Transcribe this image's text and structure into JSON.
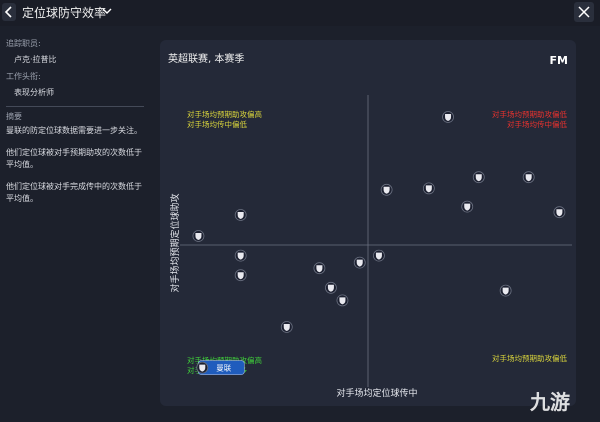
{
  "header": {
    "title": "定位球防守效率"
  },
  "sidebar": {
    "tracked_staff_label": "追踪职员:",
    "tracked_staff": "卢克·拉普比",
    "job_title_label": "工作头衔:",
    "job_title": "表现分析师",
    "summary_label": "摘要",
    "summary": [
      "曼联的防定位球数据需要进一步关注。",
      "他们定位球被对手预期助攻的次数低于平均值。",
      "他们定位球被对手完成传中的次数低于平均值。"
    ]
  },
  "chart_data": {
    "type": "scatter",
    "title": "英超联赛, 本赛季",
    "logo": "FM",
    "x_label": "对手场均定位球传中",
    "y_label": "对手场均预期定位球助攻",
    "quadrant_labels": {
      "top_left": {
        "lines": [
          "对手场均预期助攻偏高",
          "对手场均传中偏低"
        ],
        "color": "#d9d43c"
      },
      "top_right": {
        "lines": [
          "对手场均预期助攻偏低",
          "对手场均传中偏低"
        ],
        "color": "#e8322e"
      },
      "bottom_left": {
        "lines": [
          "对手场均预期助攻偏高",
          "对手场均传中偏多"
        ],
        "color": "#3fcf3a"
      },
      "bottom_right": {
        "lines": [
          "对手场均预期助攻偏低"
        ],
        "color": "#d9d43c"
      }
    },
    "x": [
      0.37,
      0.05,
      0.27,
      0.53,
      0.79,
      0.47,
      0.95,
      -0.71,
      -0.93,
      -0.71,
      0.01,
      -0.09,
      -0.3,
      -0.71,
      -0.24,
      -0.18,
      0.67,
      -0.47,
      -0.91
    ],
    "y": [
      0.9,
      0.38,
      0.39,
      0.47,
      0.47,
      0.26,
      0.22,
      0.2,
      0.05,
      -0.09,
      -0.09,
      -0.14,
      -0.18,
      -0.23,
      -0.32,
      -0.41,
      -0.34,
      -0.6,
      -0.89
    ],
    "point_labels": [
      null,
      null,
      null,
      null,
      null,
      null,
      null,
      null,
      null,
      null,
      null,
      null,
      null,
      null,
      null,
      null,
      null,
      null,
      "曼联"
    ],
    "color": "#e9e9ef",
    "highlight_color": "#1f5cbd",
    "xlim": [
      -1,
      1
    ],
    "ylim": [
      -1,
      1
    ]
  },
  "watermark": "九游"
}
